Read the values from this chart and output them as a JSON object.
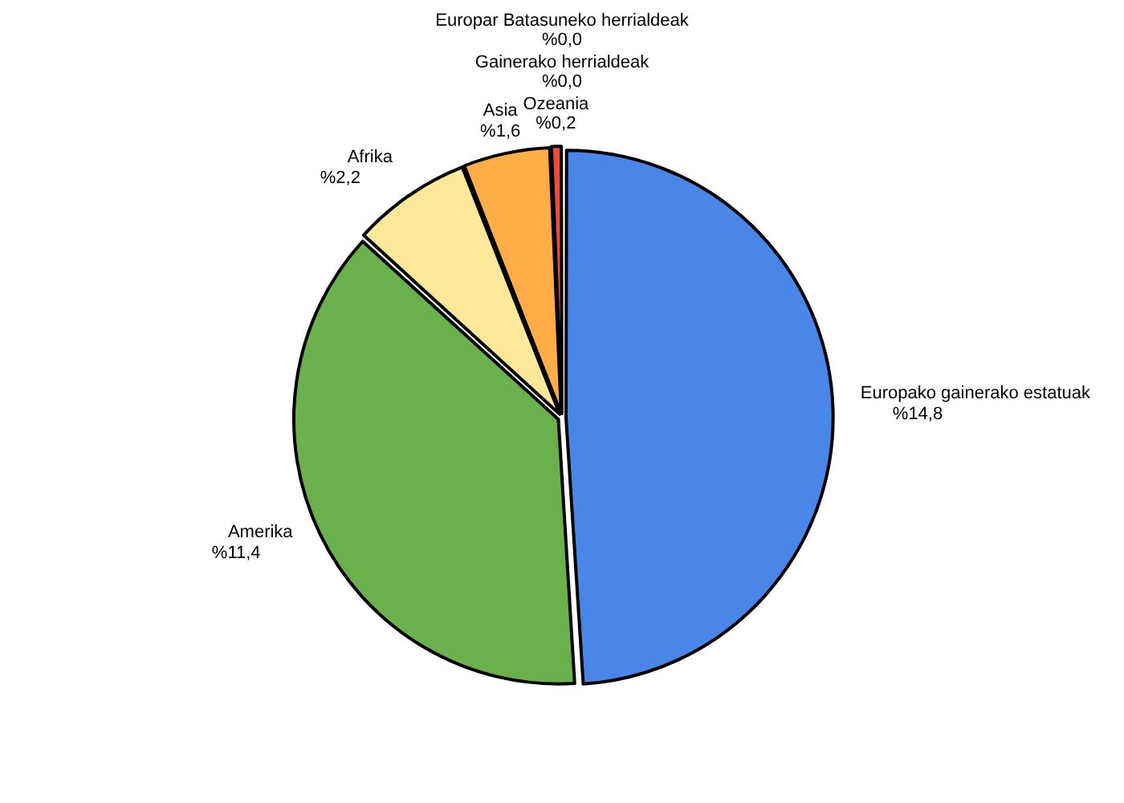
{
  "chart_data": {
    "type": "pie",
    "categories": [
      "Europako gainerako estatuak",
      "Amerika",
      "Afrika",
      "Asia",
      "Ozeania",
      "Gainerako herrialdeak",
      "Europar Batasuneko herrialdeak"
    ],
    "values": [
      14.8,
      11.4,
      2.2,
      1.6,
      0.2,
      0.0,
      0.0
    ],
    "value_labels": [
      "%14,8",
      "%11,4",
      "%2,2",
      "%1,6",
      "%0,2",
      "%0,0",
      "%0,0"
    ],
    "colors": [
      "#4a86e8",
      "#6ab04c",
      "#fce79b",
      "#ffad47",
      "#f04a3a",
      "#999999",
      "#cccccc"
    ],
    "legend": false
  }
}
